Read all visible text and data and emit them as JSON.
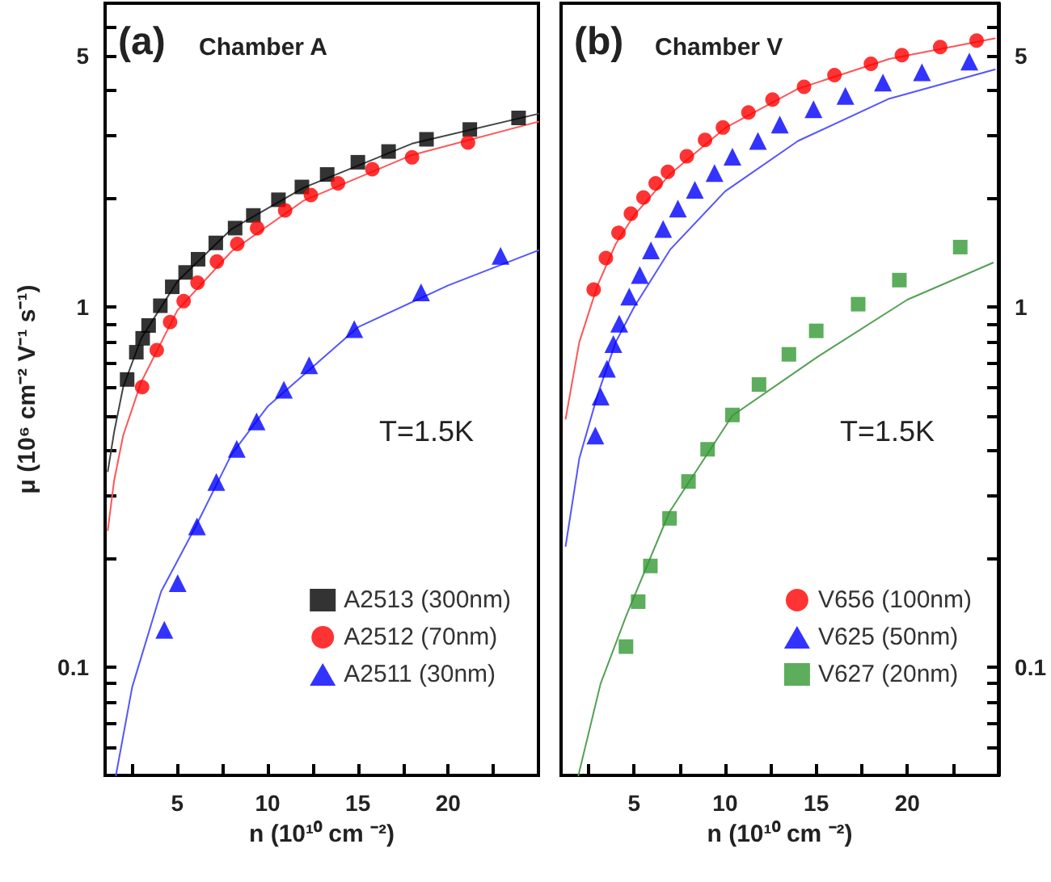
{
  "chart_data": [
    {
      "type": "scatter",
      "title": "(a)",
      "subtitle": "Chamber A",
      "xlabel": "n (10¹⁰ cm ⁻²)",
      "ylabel": "μ (10⁶ cm⁻² V⁻¹ s⁻¹)",
      "annotations": [
        "T=1.5K"
      ],
      "log": "y",
      "legend": "bottom right",
      "xlim": [
        1,
        25
      ],
      "xticks": [
        {
          "value": 2.5,
          "label": null
        },
        5,
        {
          "value": 7.5,
          "label": null
        },
        10,
        {
          "value": 12.5,
          "label": null
        },
        15,
        {
          "value": 17.5,
          "label": null
        },
        20,
        {
          "value": 22.5,
          "label": null
        }
      ],
      "ylim": [
        0.05,
        7
      ],
      "yticks": [
        {
          "value": 0.06,
          "label": null
        },
        {
          "value": 0.07,
          "label": null
        },
        {
          "value": 0.08,
          "label": null
        },
        {
          "value": 0.09,
          "label": null
        },
        0.1,
        {
          "value": 0.2,
          "label": null
        },
        {
          "value": 0.3,
          "label": null
        },
        {
          "value": 0.4,
          "label": null
        },
        {
          "value": 0.5,
          "label": null
        },
        {
          "value": 0.6,
          "label": null
        },
        {
          "value": 0.7,
          "label": null
        },
        {
          "value": 0.8,
          "label": null
        },
        {
          "value": 0.9,
          "label": null
        },
        1,
        {
          "value": 2,
          "label": null
        },
        {
          "value": 3,
          "label": null
        },
        {
          "value": 4,
          "label": null
        },
        5,
        {
          "value": 6,
          "label": null
        }
      ],
      "series": [
        {
          "type": "line",
          "color": "#444444",
          "marker": "none",
          "x": [
            1.15,
            1.5,
            2,
            3,
            5,
            8,
            12,
            18,
            25
          ],
          "values": [
            0.35,
            0.45,
            0.6,
            0.82,
            1.18,
            1.65,
            2.15,
            2.85,
            3.45
          ]
        },
        {
          "type": "line",
          "color": "#ff5555",
          "marker": "none",
          "x": [
            1.15,
            1.5,
            2,
            3,
            5,
            8,
            12,
            18,
            25
          ],
          "values": [
            0.24,
            0.33,
            0.44,
            0.62,
            0.98,
            1.43,
            1.98,
            2.65,
            3.28
          ]
        },
        {
          "type": "line",
          "color": "#5555ff",
          "marker": "none",
          "x": [
            1.6,
            2.5,
            4.1,
            6,
            8,
            10,
            15,
            20,
            25
          ],
          "values": [
            0.05,
            0.088,
            0.162,
            0.245,
            0.39,
            0.53,
            0.88,
            1.15,
            1.44
          ]
        },
        {
          "name": "A2513 (300nm)",
          "color": "#000000",
          "marker": "square",
          "x": [
            2.22,
            2.73,
            3.08,
            3.41,
            4.06,
            4.72,
            5.46,
            6.15,
            7.13,
            8.2,
            9.21,
            10.6,
            11.9,
            13.3,
            15.0,
            16.7,
            18.8,
            21.2,
            23.9
          ],
          "values": [
            0.63,
            0.75,
            0.82,
            0.89,
            1.01,
            1.14,
            1.25,
            1.36,
            1.51,
            1.66,
            1.8,
            1.99,
            2.16,
            2.34,
            2.53,
            2.71,
            2.93,
            3.12,
            3.36
          ]
        },
        {
          "name": "A2512 (70nm)",
          "color": "#ff0000",
          "marker": "circle",
          "x": [
            3.05,
            3.86,
            4.6,
            5.35,
            6.12,
            7.19,
            8.32,
            9.42,
            10.97,
            12.4,
            13.9,
            15.8,
            18.0,
            21.1
          ],
          "values": [
            0.6,
            0.76,
            0.91,
            1.04,
            1.17,
            1.34,
            1.5,
            1.66,
            1.86,
            2.05,
            2.21,
            2.42,
            2.61,
            2.87
          ]
        },
        {
          "name": "A2511 (30nm)",
          "color": "#0000ff",
          "marker": "triangle",
          "x": [
            4.28,
            5.02,
            6.09,
            7.16,
            8.29,
            9.39,
            10.9,
            12.3,
            14.8,
            18.5,
            22.9
          ],
          "values": [
            0.127,
            0.171,
            0.246,
            0.327,
            0.404,
            0.482,
            0.59,
            0.69,
            0.87,
            1.1,
            1.39
          ]
        }
      ]
    },
    {
      "type": "scatter",
      "title": "(b)",
      "subtitle": "Chamber V",
      "xlabel": "n (10¹⁰ cm ⁻²)",
      "annotations": [
        "T=1.5K"
      ],
      "log": "y2",
      "legend": "bottom right",
      "xlim": [
        1,
        25
      ],
      "xticks": [
        {
          "value": 2.5,
          "label": null
        },
        5,
        {
          "value": 7.5,
          "label": null
        },
        10,
        {
          "value": 12.5,
          "label": null
        },
        15,
        {
          "value": 17.5,
          "label": null
        },
        20,
        {
          "value": 22.5,
          "label": null
        }
      ],
      "y2lim": [
        0.05,
        7
      ],
      "y2ticks": [
        {
          "value": 0.06,
          "label": null
        },
        {
          "value": 0.07,
          "label": null
        },
        {
          "value": 0.08,
          "label": null
        },
        {
          "value": 0.09,
          "label": null
        },
        0.1,
        {
          "value": 0.2,
          "label": null
        },
        {
          "value": 0.3,
          "label": null
        },
        {
          "value": 0.4,
          "label": null
        },
        {
          "value": 0.5,
          "label": null
        },
        {
          "value": 0.6,
          "label": null
        },
        {
          "value": 0.7,
          "label": null
        },
        {
          "value": 0.8,
          "label": null
        },
        {
          "value": 0.9,
          "label": null
        },
        1,
        {
          "value": 2,
          "label": null
        },
        {
          "value": 3,
          "label": null
        },
        {
          "value": 4,
          "label": null
        },
        5,
        {
          "value": 6,
          "label": null
        }
      ],
      "series": [
        {
          "type": "line",
          "axis": "y2",
          "color": "#ff5555",
          "marker": "none",
          "x": [
            1.25,
            2,
            3,
            4,
            5,
            7,
            10,
            14,
            19,
            24.8
          ],
          "values": [
            0.49,
            0.8,
            1.15,
            1.5,
            1.8,
            2.35,
            3.15,
            4.05,
            4.9,
            5.59
          ]
        },
        {
          "type": "line",
          "axis": "y2",
          "color": "#5555ff",
          "marker": "none",
          "x": [
            1.25,
            2,
            3,
            4,
            5,
            7,
            10,
            14,
            19,
            24.8
          ],
          "values": [
            0.217,
            0.38,
            0.57,
            0.8,
            1.0,
            1.45,
            2.1,
            2.9,
            3.8,
            4.58
          ]
        },
        {
          "type": "line",
          "axis": "y2",
          "color": "#55a055",
          "marker": "none",
          "x": [
            1.95,
            3.17,
            4.6,
            6.95,
            10.4,
            15.1,
            20,
            24.7
          ],
          "values": [
            0.05,
            0.09,
            0.14,
            0.27,
            0.5,
            0.73,
            1.05,
            1.33
          ]
        },
        {
          "name": "V656 (100nm)",
          "axis": "y2",
          "color": "#ff0000",
          "marker": "circle",
          "x": [
            2.79,
            3.46,
            4.15,
            4.83,
            5.52,
            6.19,
            6.86,
            7.9,
            8.9,
            9.88,
            11.28,
            12.6,
            14.33,
            16.0,
            18.0,
            19.7,
            21.8,
            23.8
          ],
          "values": [
            1.12,
            1.37,
            1.61,
            1.82,
            2.02,
            2.21,
            2.38,
            2.63,
            2.92,
            3.16,
            3.48,
            3.78,
            4.1,
            4.42,
            4.75,
            5.02,
            5.29,
            5.51
          ]
        },
        {
          "name": "V625 (50nm)",
          "axis": "y2",
          "color": "#0000ff",
          "marker": "triangle",
          "x": [
            2.88,
            3.17,
            3.52,
            3.87,
            4.19,
            4.74,
            5.32,
            5.93,
            6.6,
            7.41,
            8.34,
            9.42,
            10.4,
            11.8,
            13.0,
            14.85,
            16.6,
            18.66,
            20.8,
            23.4
          ],
          "values": [
            0.44,
            0.565,
            0.675,
            0.79,
            0.9,
            1.07,
            1.23,
            1.44,
            1.65,
            1.88,
            2.12,
            2.36,
            2.62,
            2.9,
            3.22,
            3.55,
            3.87,
            4.21,
            4.5,
            4.82
          ]
        },
        {
          "name": "V627 (20nm)",
          "axis": "y2",
          "color": "#339933",
          "marker": "square",
          "x": [
            4.56,
            5.23,
            5.9,
            6.95,
            7.99,
            9.04,
            10.4,
            11.86,
            13.5,
            15.0,
            17.3,
            19.56,
            22.9
          ],
          "values": [
            0.114,
            0.152,
            0.191,
            0.259,
            0.328,
            0.403,
            0.502,
            0.61,
            0.74,
            0.86,
            1.02,
            1.19,
            1.47
          ]
        }
      ]
    }
  ]
}
